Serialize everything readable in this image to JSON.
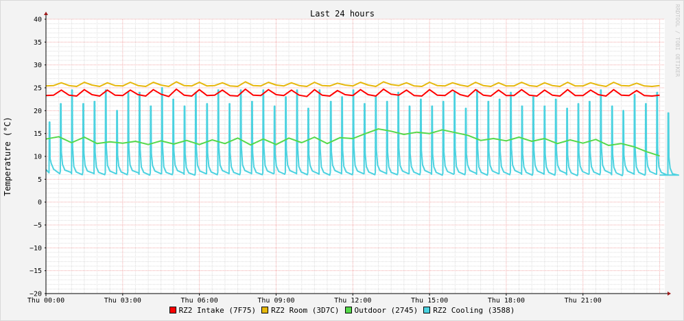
{
  "chart_data": {
    "type": "line",
    "title": "Last 24 hours",
    "ylabel": "Temperature (°C)",
    "xlabel": "",
    "watermark": "RRDTOOL / TOBI OETIKER",
    "ylim": [
      -20,
      40
    ],
    "yticks": [
      "40",
      "35",
      "30",
      "25",
      "20",
      "15",
      "10",
      "5",
      "0",
      "−5",
      "−10",
      "−15",
      "−20"
    ],
    "xlim_hours": [
      0,
      24.2
    ],
    "xticks": [
      "Thu 00:00",
      "Thu 03:00",
      "Thu 06:00",
      "Thu 09:00",
      "Thu 12:00",
      "Thu 15:00",
      "Thu 18:00",
      "Thu 21:00"
    ],
    "grid": true,
    "legend_position": "bottom",
    "colors": {
      "background": "#f3f3f3",
      "canvas": "#ffffff",
      "major_grid": "#f3a8a8",
      "minor_grid": "#dcdcdc",
      "arrow": "#9e1b1b"
    },
    "series": [
      {
        "name": "RZ2 Intake (7F75)",
        "color": "#ff0000",
        "hours": [
          0,
          0.3,
          0.6,
          0.9,
          1.2,
          1.5,
          1.8,
          2.1,
          2.4,
          2.7,
          3.0,
          3.3,
          3.6,
          3.9,
          4.2,
          4.5,
          4.8,
          5.1,
          5.4,
          5.7,
          6.0,
          6.3,
          6.6,
          6.9,
          7.2,
          7.5,
          7.8,
          8.1,
          8.4,
          8.7,
          9.0,
          9.3,
          9.6,
          9.9,
          10.2,
          10.5,
          10.8,
          11.1,
          11.4,
          11.7,
          12.0,
          12.3,
          12.6,
          12.9,
          13.2,
          13.5,
          13.8,
          14.1,
          14.4,
          14.7,
          15.0,
          15.3,
          15.6,
          15.9,
          16.2,
          16.5,
          16.8,
          17.1,
          17.4,
          17.7,
          18.0,
          18.3,
          18.6,
          18.9,
          19.2,
          19.5,
          19.8,
          20.1,
          20.4,
          20.7,
          21.0,
          21.3,
          21.6,
          21.9,
          22.2,
          22.5,
          22.8,
          23.1,
          23.4,
          23.7,
          24.0
        ],
        "values": [
          23.3,
          23.4,
          24.5,
          23.4,
          23.2,
          24.6,
          23.5,
          23.2,
          24.5,
          23.4,
          23.3,
          24.5,
          23.5,
          23.2,
          24.6,
          23.6,
          23.1,
          24.7,
          23.4,
          23.2,
          24.6,
          23.3,
          23.4,
          24.5,
          23.3,
          23.2,
          24.7,
          23.4,
          23.3,
          24.6,
          23.5,
          23.3,
          24.5,
          23.4,
          23.1,
          24.6,
          23.4,
          23.2,
          24.4,
          23.5,
          23.3,
          24.6,
          23.5,
          23.2,
          24.7,
          23.6,
          23.4,
          24.5,
          23.3,
          23.2,
          24.6,
          23.4,
          23.3,
          24.5,
          23.5,
          23.1,
          24.6,
          23.4,
          23.2,
          24.5,
          23.3,
          23.3,
          24.6,
          23.4,
          23.2,
          24.5,
          23.4,
          23.2,
          24.6,
          23.3,
          23.3,
          24.5,
          23.5,
          23.2,
          24.6,
          23.4,
          23.3,
          24.4,
          23.3,
          23.2,
          23.4
        ]
      },
      {
        "name": "RZ2 Room (3D7C)",
        "color": "#e6b80c",
        "hours": [
          0,
          0.3,
          0.6,
          0.9,
          1.2,
          1.5,
          1.8,
          2.1,
          2.4,
          2.7,
          3.0,
          3.3,
          3.6,
          3.9,
          4.2,
          4.5,
          4.8,
          5.1,
          5.4,
          5.7,
          6.0,
          6.3,
          6.6,
          6.9,
          7.2,
          7.5,
          7.8,
          8.1,
          8.4,
          8.7,
          9.0,
          9.3,
          9.6,
          9.9,
          10.2,
          10.5,
          10.8,
          11.1,
          11.4,
          11.7,
          12.0,
          12.3,
          12.6,
          12.9,
          13.2,
          13.5,
          13.8,
          14.1,
          14.4,
          14.7,
          15.0,
          15.3,
          15.6,
          15.9,
          16.2,
          16.5,
          16.8,
          17.1,
          17.4,
          17.7,
          18.0,
          18.3,
          18.6,
          18.9,
          19.2,
          19.5,
          19.8,
          20.1,
          20.4,
          20.7,
          21.0,
          21.3,
          21.6,
          21.9,
          22.2,
          22.5,
          22.8,
          23.1,
          23.4,
          23.7,
          24.0
        ],
        "values": [
          25.4,
          25.5,
          26.1,
          25.5,
          25.3,
          26.2,
          25.6,
          25.3,
          26.1,
          25.5,
          25.4,
          26.2,
          25.5,
          25.3,
          26.2,
          25.6,
          25.3,
          26.3,
          25.5,
          25.4,
          26.2,
          25.4,
          25.5,
          26.1,
          25.4,
          25.3,
          26.3,
          25.5,
          25.4,
          26.2,
          25.6,
          25.4,
          26.1,
          25.5,
          25.3,
          26.2,
          25.5,
          25.4,
          26.0,
          25.6,
          25.4,
          26.2,
          25.6,
          25.3,
          26.3,
          25.7,
          25.5,
          26.1,
          25.4,
          25.3,
          26.2,
          25.5,
          25.4,
          26.1,
          25.6,
          25.3,
          26.2,
          25.5,
          25.3,
          26.1,
          25.4,
          25.4,
          26.2,
          25.5,
          25.3,
          26.1,
          25.5,
          25.3,
          26.2,
          25.4,
          25.4,
          26.1,
          25.6,
          25.3,
          26.2,
          25.5,
          25.4,
          26.0,
          25.4,
          25.3,
          25.5
        ]
      },
      {
        "name": "Outdoor (2745)",
        "color": "#55d94a",
        "hours": [
          0,
          0.5,
          1.0,
          1.5,
          2.0,
          2.5,
          3.0,
          3.5,
          4.0,
          4.5,
          5.0,
          5.5,
          6.0,
          6.5,
          7.0,
          7.5,
          8.0,
          8.5,
          9.0,
          9.5,
          10.0,
          10.5,
          11.0,
          11.5,
          12.0,
          12.5,
          13.0,
          13.5,
          14.0,
          14.5,
          15.0,
          15.5,
          16.0,
          16.5,
          17.0,
          17.5,
          18.0,
          18.5,
          19.0,
          19.5,
          20.0,
          20.5,
          21.0,
          21.5,
          22.0,
          22.5,
          23.0,
          23.5,
          24.0
        ],
        "values": [
          13.8,
          14.3,
          13.0,
          14.2,
          12.8,
          13.2,
          12.9,
          13.3,
          12.6,
          13.4,
          12.7,
          13.5,
          12.6,
          13.6,
          12.8,
          14.0,
          12.5,
          13.8,
          12.6,
          14.0,
          13.0,
          14.2,
          12.8,
          14.1,
          13.9,
          15.0,
          16.0,
          15.5,
          14.8,
          15.3,
          15.0,
          15.8,
          15.2,
          14.6,
          13.5,
          13.9,
          13.4,
          14.2,
          13.3,
          13.9,
          12.8,
          13.6,
          12.9,
          13.7,
          12.4,
          12.8,
          12.1,
          11.0,
          10.1
        ]
      },
      {
        "name": "RZ2 Cooling (3588)",
        "color": "#4cd2e0",
        "period_hours": 0.44,
        "peak_values": [
          17.5,
          21.5,
          24.5,
          21.5,
          22,
          24.5,
          20,
          24,
          24,
          21,
          25,
          22.5,
          21,
          24,
          21.5,
          24.5,
          21.5,
          24.5,
          22,
          24.5,
          21,
          23,
          24.5,
          20.5,
          24.5,
          22,
          23,
          24.5,
          21.5,
          23,
          22,
          24,
          21,
          22.5,
          21,
          22,
          24,
          20.5,
          24.5,
          22,
          22.5,
          24,
          21,
          23,
          21,
          22.5,
          20.5,
          21.5,
          22,
          24.5,
          21,
          20,
          23.5,
          21.5,
          24,
          19.5
        ],
        "baseline_start": [
          7.2,
          7.0,
          6.6,
          6.8,
          6.5,
          6.8,
          6.6,
          6.9,
          6.5,
          6.8,
          6.5,
          6.9,
          6.4,
          6.8,
          6.6,
          6.9,
          6.5,
          6.9,
          6.5,
          6.8,
          6.7,
          6.9,
          6.6,
          6.8,
          6.5,
          6.9,
          6.6,
          6.8,
          6.6,
          6.9,
          6.5,
          6.8,
          6.6,
          6.9,
          6.5,
          6.7,
          6.6,
          6.9,
          6.5,
          6.8,
          6.6,
          6.9,
          6.5,
          6.8,
          6.5,
          6.9,
          6.4,
          6.7,
          6.6,
          6.9,
          6.4,
          6.8,
          6.5,
          6.7,
          6.5,
          6.2
        ],
        "baseline_end": [
          6.2,
          6.5,
          6.0,
          6.3,
          6.0,
          6.2,
          6.0,
          6.4,
          5.9,
          6.2,
          6.0,
          6.3,
          5.9,
          6.2,
          6.0,
          6.3,
          6.0,
          6.3,
          6.0,
          6.2,
          6.1,
          6.3,
          6.0,
          6.2,
          5.9,
          6.3,
          6.0,
          6.2,
          6.0,
          6.3,
          6.0,
          6.2,
          6.0,
          6.3,
          5.9,
          6.1,
          6.0,
          6.3,
          5.9,
          6.2,
          6.0,
          6.3,
          5.9,
          6.2,
          5.9,
          6.3,
          5.8,
          6.1,
          6.0,
          6.3,
          5.8,
          6.2,
          5.9,
          6.1,
          5.9,
          5.9
        ]
      }
    ]
  }
}
